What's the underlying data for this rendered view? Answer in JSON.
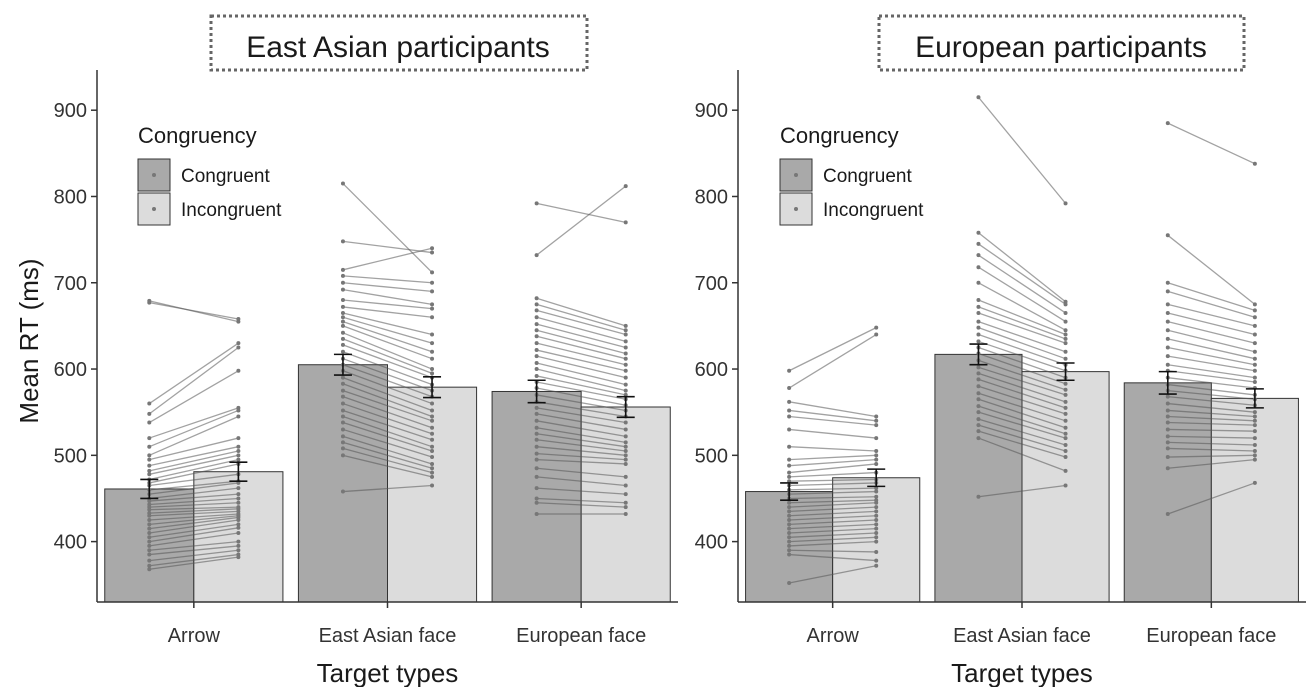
{
  "chart_data": [
    {
      "type": "bar",
      "title": "East Asian participants",
      "xlabel": "Target types",
      "ylabel": "Mean RT (ms)",
      "ylim": [
        330,
        935
      ],
      "yticks": [
        400,
        500,
        600,
        700,
        800,
        900
      ],
      "categories": [
        "Arrow",
        "East Asian face",
        "European face"
      ],
      "grid": false,
      "legend": {
        "title": "Congruency",
        "placement": "top-left"
      },
      "series": [
        {
          "name": "Congruent",
          "color": "#a9a9a9",
          "values": [
            461,
            605,
            574
          ],
          "se": [
            11,
            12,
            13
          ]
        },
        {
          "name": "Incongruent",
          "color": "#dcdcdc",
          "values": [
            481,
            579,
            556
          ],
          "se": [
            11,
            12,
            12
          ]
        }
      ],
      "individual": [
        [
          [
            679,
            655
          ],
          [
            677,
            658
          ],
          [
            560,
            630
          ],
          [
            548,
            625
          ],
          [
            538,
            598
          ],
          [
            520,
            555
          ],
          [
            510,
            552
          ],
          [
            500,
            545
          ],
          [
            495,
            520
          ],
          [
            488,
            510
          ],
          [
            482,
            505
          ],
          [
            478,
            500
          ],
          [
            472,
            495
          ],
          [
            468,
            490
          ],
          [
            465,
            478
          ],
          [
            460,
            470
          ],
          [
            455,
            468
          ],
          [
            450,
            462
          ],
          [
            447,
            455
          ],
          [
            443,
            450
          ],
          [
            440,
            445
          ],
          [
            437,
            440
          ],
          [
            433,
            438
          ],
          [
            430,
            435
          ],
          [
            425,
            432
          ],
          [
            420,
            430
          ],
          [
            415,
            428
          ],
          [
            410,
            425
          ],
          [
            405,
            420
          ],
          [
            400,
            416
          ],
          [
            395,
            410
          ],
          [
            390,
            400
          ],
          [
            385,
            395
          ],
          [
            378,
            390
          ],
          [
            372,
            385
          ],
          [
            368,
            382
          ]
        ],
        [
          [
            815,
            712
          ],
          [
            748,
            735
          ],
          [
            715,
            740
          ],
          [
            708,
            700
          ],
          [
            700,
            690
          ],
          [
            692,
            675
          ],
          [
            680,
            670
          ],
          [
            672,
            660
          ],
          [
            665,
            640
          ],
          [
            660,
            630
          ],
          [
            655,
            620
          ],
          [
            650,
            612
          ],
          [
            642,
            600
          ],
          [
            635,
            595
          ],
          [
            628,
            590
          ],
          [
            620,
            582
          ],
          [
            612,
            575
          ],
          [
            605,
            568
          ],
          [
            598,
            560
          ],
          [
            590,
            552
          ],
          [
            583,
            545
          ],
          [
            575,
            540
          ],
          [
            568,
            532
          ],
          [
            560,
            525
          ],
          [
            552,
            518
          ],
          [
            545,
            510
          ],
          [
            538,
            505
          ],
          [
            530,
            498
          ],
          [
            522,
            490
          ],
          [
            515,
            485
          ],
          [
            508,
            480
          ],
          [
            500,
            475
          ],
          [
            458,
            465
          ]
        ],
        [
          [
            792,
            770
          ],
          [
            732,
            812
          ],
          [
            682,
            650
          ],
          [
            675,
            645
          ],
          [
            668,
            640
          ],
          [
            660,
            632
          ],
          [
            652,
            625
          ],
          [
            645,
            618
          ],
          [
            638,
            612
          ],
          [
            630,
            605
          ],
          [
            622,
            598
          ],
          [
            615,
            590
          ],
          [
            607,
            582
          ],
          [
            600,
            575
          ],
          [
            592,
            570
          ],
          [
            585,
            565
          ],
          [
            578,
            558
          ],
          [
            570,
            552
          ],
          [
            562,
            545
          ],
          [
            555,
            538
          ],
          [
            548,
            530
          ],
          [
            540,
            522
          ],
          [
            532,
            515
          ],
          [
            525,
            510
          ],
          [
            518,
            505
          ],
          [
            510,
            500
          ],
          [
            502,
            495
          ],
          [
            495,
            490
          ],
          [
            485,
            475
          ],
          [
            475,
            465
          ],
          [
            462,
            455
          ],
          [
            450,
            445
          ],
          [
            445,
            440
          ],
          [
            432,
            432
          ]
        ]
      ]
    },
    {
      "type": "bar",
      "title": "European participants",
      "xlabel": "Target types",
      "ylabel": "",
      "ylim": [
        330,
        935
      ],
      "yticks": [
        400,
        500,
        600,
        700,
        800,
        900
      ],
      "categories": [
        "Arrow",
        "East Asian face",
        "European face"
      ],
      "grid": false,
      "legend": {
        "title": "Congruency",
        "placement": "top-left"
      },
      "series": [
        {
          "name": "Congruent",
          "color": "#a9a9a9",
          "values": [
            458,
            617,
            584
          ],
          "se": [
            10,
            12,
            13
          ]
        },
        {
          "name": "Incongruent",
          "color": "#dcdcdc",
          "values": [
            474,
            597,
            566
          ],
          "se": [
            10,
            10,
            11
          ]
        }
      ],
      "individual": [
        [
          [
            598,
            648
          ],
          [
            578,
            640
          ],
          [
            562,
            545
          ],
          [
            552,
            540
          ],
          [
            545,
            535
          ],
          [
            530,
            520
          ],
          [
            510,
            505
          ],
          [
            495,
            500
          ],
          [
            488,
            495
          ],
          [
            480,
            490
          ],
          [
            475,
            480
          ],
          [
            470,
            472
          ],
          [
            465,
            468
          ],
          [
            460,
            462
          ],
          [
            455,
            458
          ],
          [
            450,
            452
          ],
          [
            445,
            448
          ],
          [
            440,
            445
          ],
          [
            435,
            440
          ],
          [
            430,
            435
          ],
          [
            425,
            430
          ],
          [
            420,
            425
          ],
          [
            415,
            420
          ],
          [
            410,
            415
          ],
          [
            405,
            410
          ],
          [
            400,
            405
          ],
          [
            395,
            400
          ],
          [
            390,
            388
          ],
          [
            385,
            378
          ],
          [
            352,
            372
          ]
        ],
        [
          [
            915,
            792
          ],
          [
            758,
            678
          ],
          [
            745,
            675
          ],
          [
            732,
            665
          ],
          [
            718,
            655
          ],
          [
            700,
            645
          ],
          [
            680,
            640
          ],
          [
            672,
            635
          ],
          [
            665,
            630
          ],
          [
            655,
            620
          ],
          [
            648,
            612
          ],
          [
            640,
            605
          ],
          [
            632,
            598
          ],
          [
            625,
            590
          ],
          [
            618,
            583
          ],
          [
            610,
            576
          ],
          [
            602,
            570
          ],
          [
            595,
            562
          ],
          [
            588,
            555
          ],
          [
            580,
            548
          ],
          [
            572,
            540
          ],
          [
            565,
            532
          ],
          [
            557,
            525
          ],
          [
            550,
            520
          ],
          [
            542,
            512
          ],
          [
            535,
            505
          ],
          [
            528,
            498
          ],
          [
            520,
            482
          ],
          [
            452,
            465
          ]
        ],
        [
          [
            885,
            838
          ],
          [
            755,
            675
          ],
          [
            700,
            668
          ],
          [
            690,
            660
          ],
          [
            675,
            650
          ],
          [
            665,
            640
          ],
          [
            655,
            630
          ],
          [
            645,
            620
          ],
          [
            635,
            612
          ],
          [
            625,
            605
          ],
          [
            615,
            598
          ],
          [
            605,
            590
          ],
          [
            598,
            585
          ],
          [
            590,
            578
          ],
          [
            582,
            570
          ],
          [
            575,
            565
          ],
          [
            568,
            558
          ],
          [
            560,
            550
          ],
          [
            552,
            545
          ],
          [
            545,
            540
          ],
          [
            538,
            535
          ],
          [
            530,
            528
          ],
          [
            522,
            520
          ],
          [
            515,
            512
          ],
          [
            508,
            505
          ],
          [
            498,
            500
          ],
          [
            485,
            495
          ],
          [
            432,
            468
          ]
        ]
      ]
    }
  ]
}
